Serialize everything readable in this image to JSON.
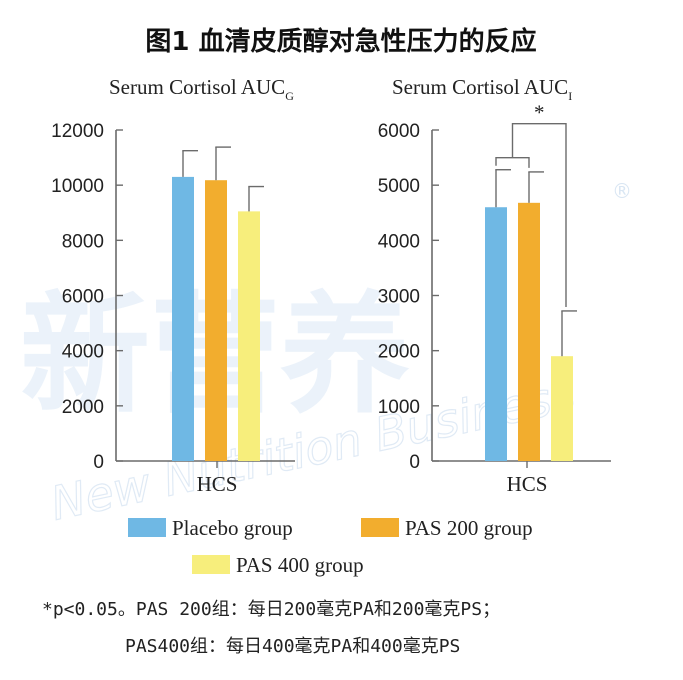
{
  "figure_title": "图1 血清皮质醇对急性压力的反应",
  "watermark": {
    "cn": "新营养",
    "en": "New Nutrition Business",
    "mark": "®"
  },
  "legend": [
    {
      "label": "Placebo group",
      "color": "#6fb8e4"
    },
    {
      "label": "PAS 200 group",
      "color": "#f2ad2e"
    },
    {
      "label": "PAS 400 group",
      "color": "#f7ee7c"
    }
  ],
  "footnote": {
    "line1": "*p<0.05。PAS 200组：每日200毫克PA和200毫克PS；",
    "line2": "PAS400组：每日400毫克PA和400毫克PS"
  },
  "chart_data": [
    {
      "type": "bar",
      "title": "Serum Cortisol AUC",
      "title_subscript": "G",
      "categories": [
        "HCS"
      ],
      "series": [
        {
          "name": "Placebo group",
          "values": [
            10300
          ],
          "error": [
            950
          ]
        },
        {
          "name": "PAS 200 group",
          "values": [
            10180
          ],
          "error": [
            1200
          ]
        },
        {
          "name": "PAS 400 group",
          "values": [
            9050
          ],
          "error": [
            900
          ]
        }
      ],
      "ylim": [
        0,
        12000
      ],
      "yticks": [
        0,
        2000,
        4000,
        6000,
        8000,
        10000,
        12000
      ],
      "significance": []
    },
    {
      "type": "bar",
      "title": "Serum Cortisol AUC",
      "title_subscript": "I",
      "categories": [
        "HCS"
      ],
      "series": [
        {
          "name": "Placebo group",
          "values": [
            4600
          ],
          "error": [
            680
          ]
        },
        {
          "name": "PAS 200 group",
          "values": [
            4680
          ],
          "error": [
            560
          ]
        },
        {
          "name": "PAS 400 group",
          "values": [
            1900
          ],
          "error": [
            820
          ]
        }
      ],
      "ylim": [
        0,
        6000
      ],
      "yticks": [
        0,
        1000,
        2000,
        3000,
        4000,
        5000,
        6000
      ],
      "significance": [
        {
          "label": "*",
          "between": [
            "Placebo group + PAS 200 group",
            "PAS 400 group"
          ]
        }
      ]
    }
  ]
}
